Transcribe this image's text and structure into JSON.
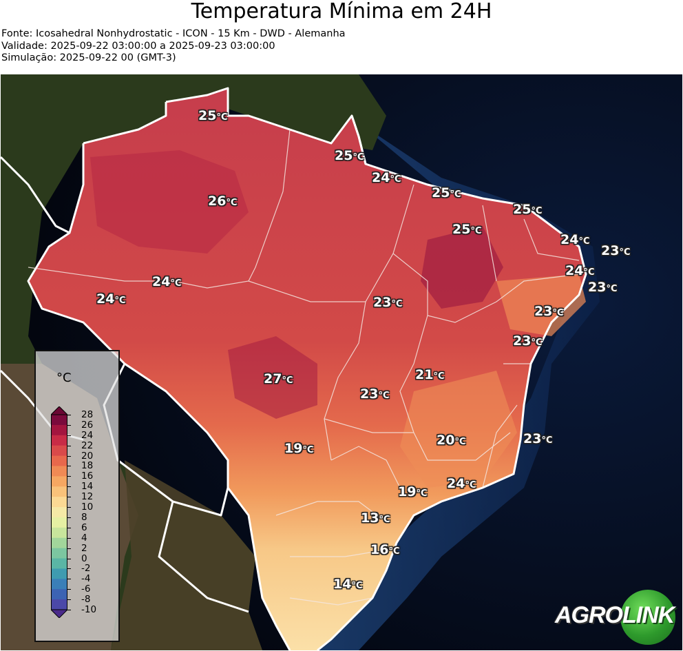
{
  "header": {
    "title": "Temperatura Mínima em 24H",
    "source": "Fonte: Icosahedral Nonhydrostatic - ICON - 15 Km - DWD - Alemanha",
    "validity": "Validade: 2025-09-22 03:00:00 a 2025-09-23 03:00:00",
    "simulation": "Simulação: 2025-09-22 00 (GMT-3)"
  },
  "map": {
    "region": "Brasil",
    "labels": [
      {
        "id": "roraima",
        "value": "25",
        "unit": "°C"
      },
      {
        "id": "amapa",
        "value": "25",
        "unit": "°C"
      },
      {
        "id": "belem",
        "value": "24",
        "unit": "°C"
      },
      {
        "id": "sao-luis",
        "value": "25",
        "unit": "°C"
      },
      {
        "id": "fortaleza",
        "value": "25",
        "unit": "°C"
      },
      {
        "id": "amazonas-north",
        "value": "26",
        "unit": "°C"
      },
      {
        "id": "piaui",
        "value": "25",
        "unit": "°C"
      },
      {
        "id": "rio-grande-do-norte",
        "value": "24",
        "unit": "°C"
      },
      {
        "id": "natal",
        "value": "23",
        "unit": "°C"
      },
      {
        "id": "paraiba",
        "value": "24",
        "unit": "°C"
      },
      {
        "id": "recife",
        "value": "23",
        "unit": "°C"
      },
      {
        "id": "amazonas-south",
        "value": "24",
        "unit": "°C"
      },
      {
        "id": "acre",
        "value": "24",
        "unit": "°C"
      },
      {
        "id": "tocantins",
        "value": "23",
        "unit": "°C"
      },
      {
        "id": "alagoas",
        "value": "23",
        "unit": "°C"
      },
      {
        "id": "salvador",
        "value": "23",
        "unit": "°C"
      },
      {
        "id": "brasilia",
        "value": "21",
        "unit": "°C"
      },
      {
        "id": "mato-grosso",
        "value": "27",
        "unit": "°C"
      },
      {
        "id": "goias",
        "value": "23",
        "unit": "°C"
      },
      {
        "id": "minas-gerais",
        "value": "20",
        "unit": "°C"
      },
      {
        "id": "espirito-santo",
        "value": "23",
        "unit": "°C"
      },
      {
        "id": "mato-grosso-do-sul",
        "value": "19",
        "unit": "°C"
      },
      {
        "id": "rio-de-janeiro",
        "value": "24",
        "unit": "°C"
      },
      {
        "id": "sao-paulo",
        "value": "19",
        "unit": "°C"
      },
      {
        "id": "parana",
        "value": "13",
        "unit": "°C"
      },
      {
        "id": "santa-catarina",
        "value": "16",
        "unit": "°C"
      },
      {
        "id": "rio-grande-do-sul",
        "value": "14",
        "unit": "°C"
      }
    ]
  },
  "legend": {
    "unit": "°C",
    "ticks": [
      "28",
      "26",
      "24",
      "22",
      "20",
      "18",
      "16",
      "14",
      "12",
      "10",
      "8",
      "6",
      "4",
      "2",
      "0",
      "-2",
      "-4",
      "-6",
      "-8",
      "-10"
    ],
    "colors": [
      "#7a0a3c",
      "#a3153f",
      "#c82b46",
      "#d94a4a",
      "#e8684c",
      "#f08a55",
      "#f6a762",
      "#f9c27a",
      "#fbd994",
      "#f5e9a6",
      "#e6f0a3",
      "#c8e59c",
      "#a2d69b",
      "#7cc6a0",
      "#5ab5a5",
      "#3f9bb0",
      "#3a7fb8",
      "#3c63b3",
      "#4b48a8",
      "#5a2f94"
    ],
    "max_arrow_color": "#6a0733",
    "min_arrow_color": "#4a2a8a"
  },
  "logo": {
    "part_a": "AGRO",
    "part_b": "LINK",
    "accent_color": "#2e9a2c"
  }
}
